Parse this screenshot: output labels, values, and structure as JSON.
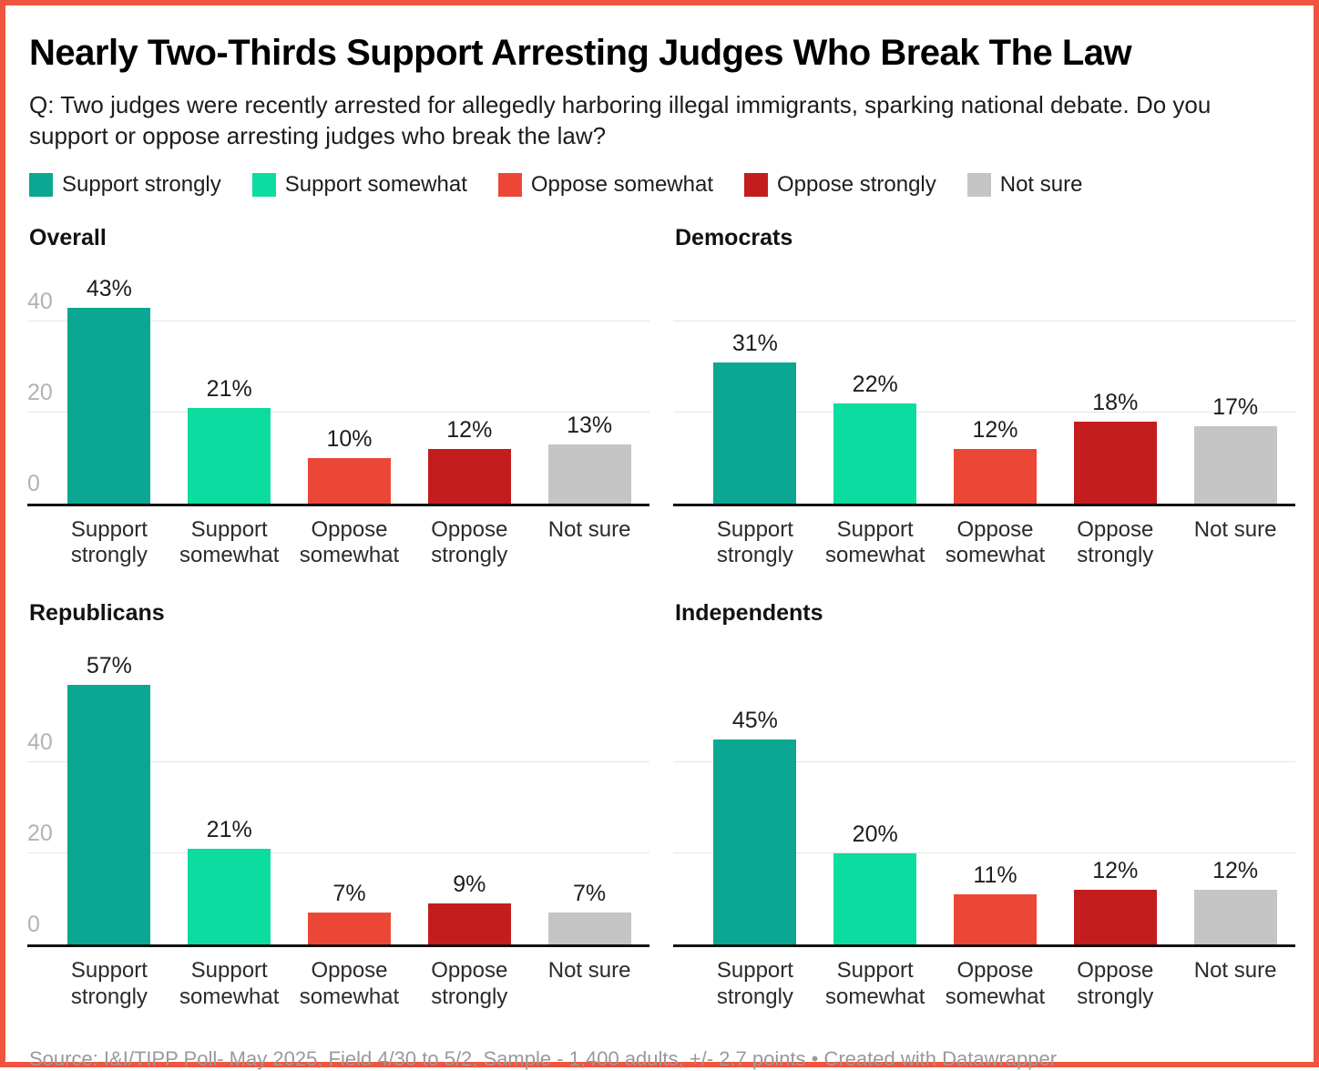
{
  "frame": {
    "border_color": "#F0543F",
    "background": "#ffffff"
  },
  "header": {
    "title": "Nearly Two-Thirds Support Arresting Judges Who Break The Law",
    "subtitle": "Q: Two judges were recently arrested for allegedly harboring illegal immigrants, sparking national debate. Do you support or oppose arresting judges who break the law?"
  },
  "legend": {
    "items": [
      {
        "label": "Support strongly",
        "color": "#0BA793"
      },
      {
        "label": "Support somewhat",
        "color": "#0CDC9F"
      },
      {
        "label": "Oppose somewhat",
        "color": "#EC4736"
      },
      {
        "label": "Oppose strongly",
        "color": "#C41D1D"
      },
      {
        "label": "Not sure",
        "color": "#C5C5C5"
      }
    ]
  },
  "chart_data": {
    "type": "bar",
    "layout": "small-multiples-2x2",
    "categories": [
      "Support strongly",
      "Support somewhat",
      "Oppose somewhat",
      "Oppose strongly",
      "Not sure"
    ],
    "colors": [
      "#0BA793",
      "#0CDC9F",
      "#EC4736",
      "#C41D1D",
      "#C5C5C5"
    ],
    "series": [
      {
        "name": "Overall",
        "values": [
          43,
          21,
          10,
          12,
          13
        ]
      },
      {
        "name": "Democrats",
        "values": [
          31,
          22,
          12,
          18,
          17
        ]
      },
      {
        "name": "Republicans",
        "values": [
          57,
          21,
          7,
          9,
          7
        ]
      },
      {
        "name": "Independents",
        "values": [
          45,
          20,
          11,
          12,
          12
        ]
      }
    ],
    "value_suffix": "%",
    "y_ticks": [
      0,
      20,
      40
    ],
    "ylim": [
      0,
      60
    ],
    "grid": true,
    "gridline_color": "#e5e5e5",
    "axis_color": "#111111",
    "tick_label_color": "#b3b3b3",
    "legend_position": "top",
    "y_ticks_shown_on": [
      "Overall",
      "Republicans"
    ]
  },
  "footer": {
    "source": "Source: I&I/TIPP Poll- May 2025, Field 4/30 to 5/2, Sample - 1,400 adults, +/- 2.7 points • Created with Datawrapper"
  }
}
